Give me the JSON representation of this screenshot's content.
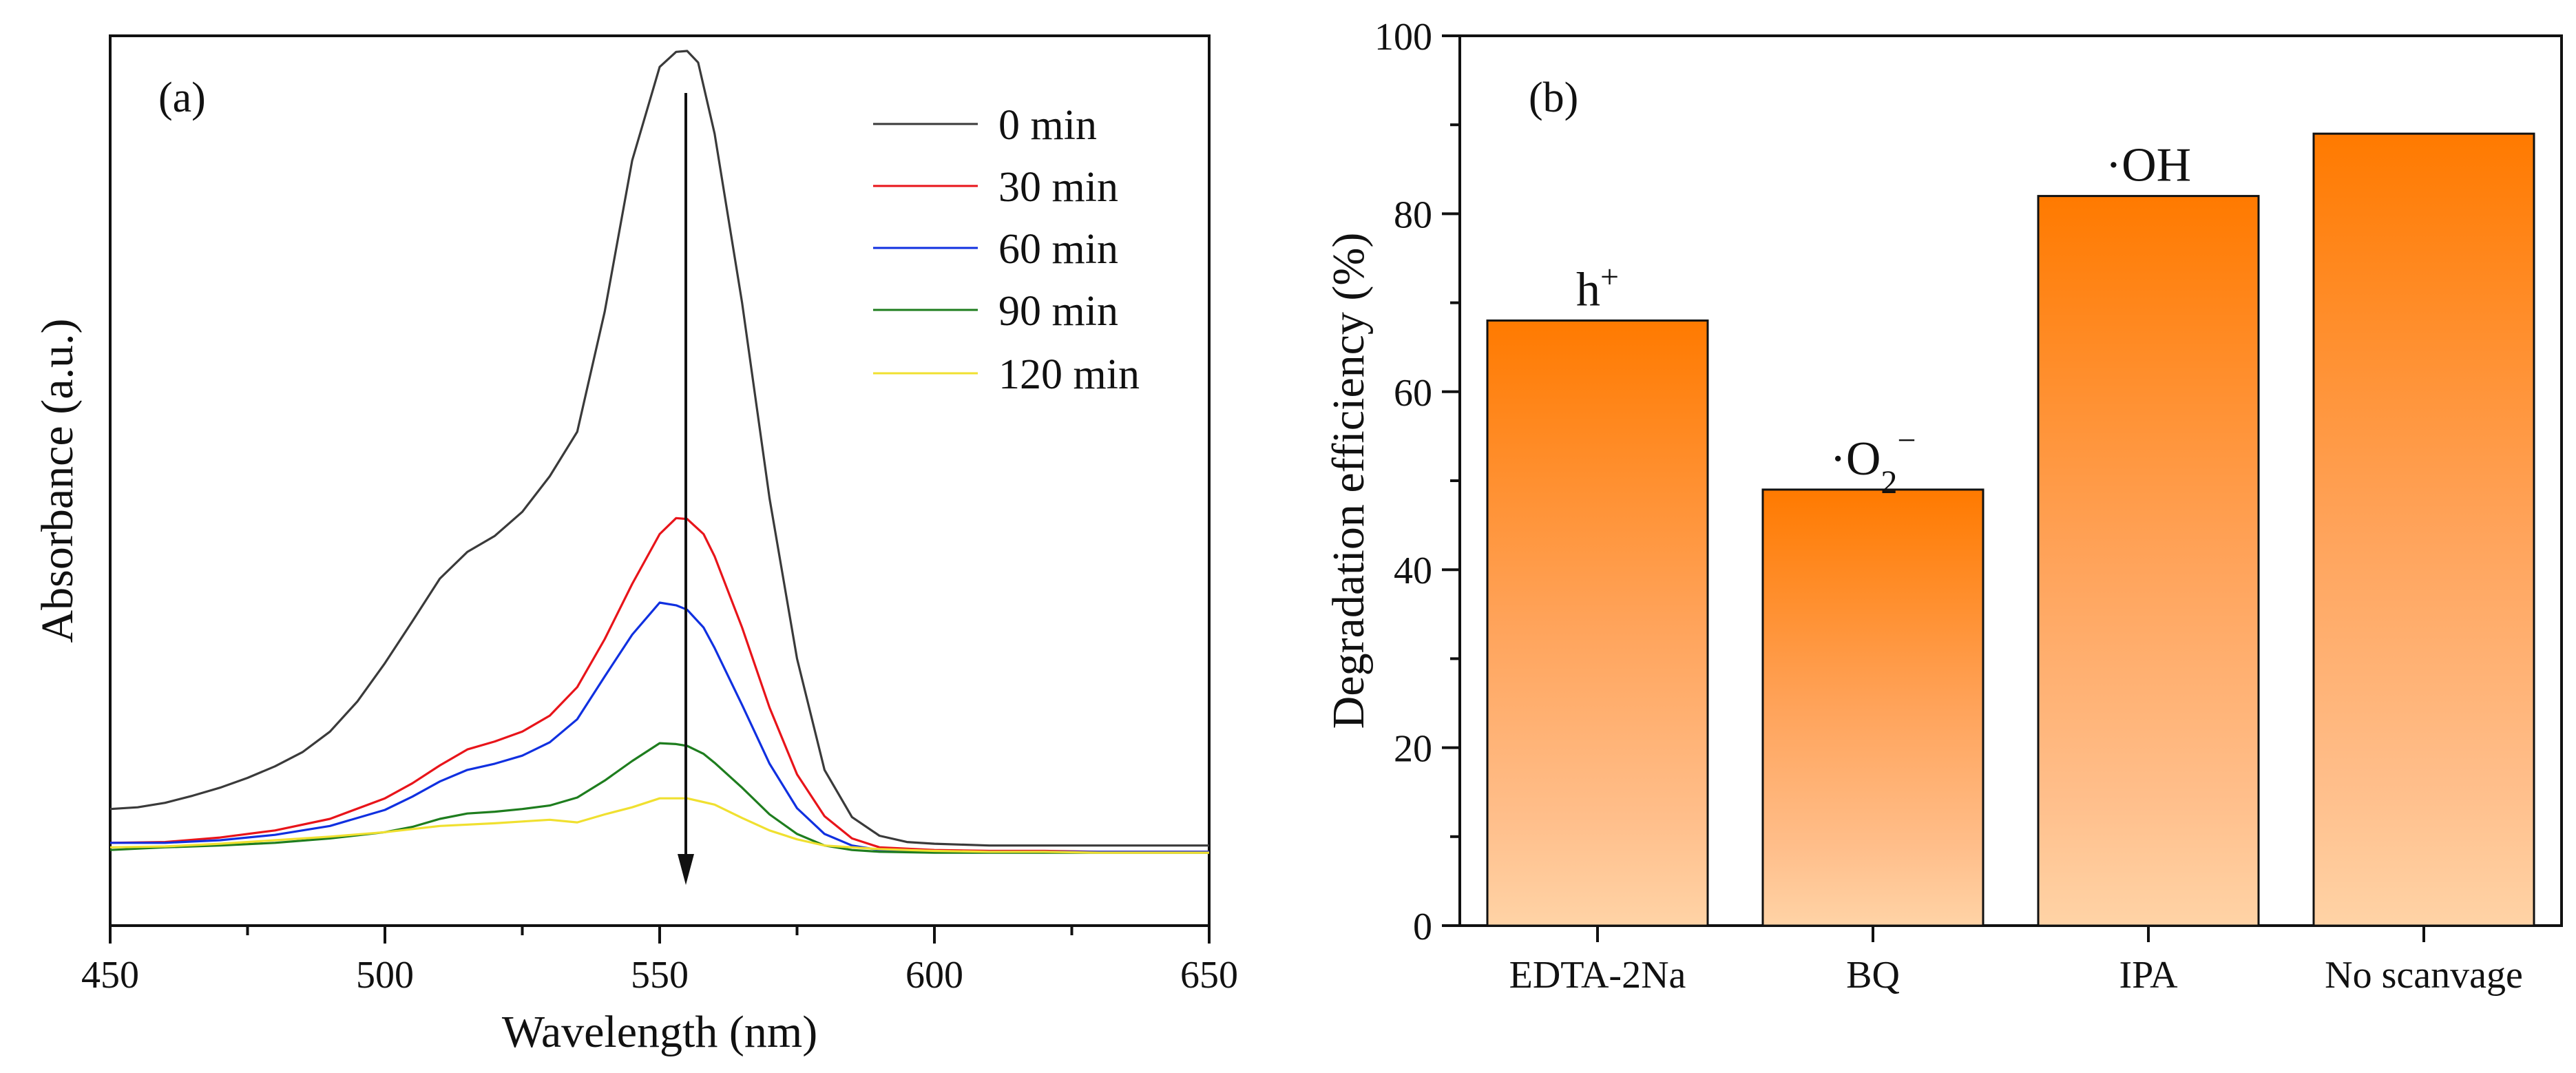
{
  "chart_data": [
    {
      "type": "line",
      "panel_label": "(a)",
      "xlabel": "Wavelength (nm)",
      "ylabel": "Absorbance (a.u.)",
      "xlim": [
        450,
        650
      ],
      "ylim": [
        0,
        1.0
      ],
      "x_ticks": [
        "450",
        "500",
        "550",
        "600",
        "650"
      ],
      "y_tick_labels_shown": false,
      "legend_position": "top-right",
      "annotations": [
        "downward arrow at the peak (~555 nm) indicating decreasing absorbance with time"
      ],
      "series": [
        {
          "name": "0 min",
          "color": "#3a3a3a",
          "x": [
            450,
            455,
            460,
            465,
            470,
            475,
            480,
            485,
            490,
            495,
            500,
            505,
            510,
            515,
            520,
            525,
            530,
            535,
            540,
            545,
            550,
            553,
            555,
            557,
            560,
            565,
            570,
            575,
            580,
            585,
            590,
            595,
            600,
            610,
            620,
            630,
            640,
            650
          ],
          "y": [
            0.131,
            0.133,
            0.138,
            0.146,
            0.155,
            0.166,
            0.179,
            0.195,
            0.218,
            0.252,
            0.295,
            0.342,
            0.39,
            0.42,
            0.438,
            0.465,
            0.505,
            0.555,
            0.69,
            0.86,
            0.965,
            0.982,
            0.983,
            0.97,
            0.89,
            0.7,
            0.48,
            0.3,
            0.175,
            0.122,
            0.101,
            0.094,
            0.092,
            0.09,
            0.09,
            0.09,
            0.09,
            0.09
          ]
        },
        {
          "name": "30 min",
          "color": "#e8141a",
          "x": [
            450,
            460,
            470,
            480,
            490,
            500,
            505,
            510,
            515,
            520,
            525,
            530,
            535,
            540,
            545,
            550,
            553,
            555,
            558,
            560,
            565,
            570,
            575,
            580,
            585,
            590,
            600,
            610,
            620,
            630,
            640,
            650
          ],
          "y": [
            0.093,
            0.094,
            0.099,
            0.107,
            0.12,
            0.143,
            0.16,
            0.18,
            0.198,
            0.207,
            0.218,
            0.236,
            0.268,
            0.322,
            0.384,
            0.44,
            0.458,
            0.457,
            0.44,
            0.415,
            0.335,
            0.245,
            0.17,
            0.123,
            0.098,
            0.088,
            0.085,
            0.084,
            0.084,
            0.083,
            0.083,
            0.083
          ]
        },
        {
          "name": "60 min",
          "color": "#1030e0",
          "x": [
            450,
            460,
            470,
            480,
            490,
            500,
            505,
            510,
            515,
            520,
            525,
            530,
            535,
            540,
            545,
            550,
            553,
            555,
            558,
            560,
            565,
            570,
            575,
            580,
            585,
            590,
            600,
            610,
            620,
            630,
            640,
            650
          ],
          "y": [
            0.093,
            0.093,
            0.096,
            0.102,
            0.112,
            0.13,
            0.145,
            0.162,
            0.175,
            0.182,
            0.191,
            0.206,
            0.232,
            0.28,
            0.327,
            0.363,
            0.36,
            0.355,
            0.335,
            0.312,
            0.248,
            0.182,
            0.132,
            0.103,
            0.09,
            0.085,
            0.083,
            0.083,
            0.083,
            0.083,
            0.083,
            0.083
          ]
        },
        {
          "name": "90 min",
          "color": "#1e7d1e",
          "x": [
            450,
            460,
            470,
            480,
            490,
            500,
            505,
            510,
            515,
            520,
            525,
            530,
            535,
            540,
            545,
            550,
            553,
            555,
            558,
            560,
            565,
            570,
            575,
            580,
            585,
            590,
            600,
            610,
            620,
            630,
            640,
            650
          ],
          "y": [
            0.085,
            0.088,
            0.09,
            0.093,
            0.098,
            0.105,
            0.111,
            0.12,
            0.126,
            0.128,
            0.131,
            0.135,
            0.144,
            0.163,
            0.185,
            0.205,
            0.204,
            0.202,
            0.193,
            0.183,
            0.155,
            0.125,
            0.103,
            0.09,
            0.085,
            0.083,
            0.082,
            0.082,
            0.082,
            0.082,
            0.082,
            0.082
          ]
        },
        {
          "name": "120 min",
          "color": "#f0e030",
          "x": [
            450,
            460,
            470,
            480,
            490,
            500,
            510,
            520,
            525,
            530,
            535,
            540,
            545,
            550,
            555,
            560,
            565,
            570,
            575,
            580,
            590,
            600,
            610,
            620,
            630,
            640,
            650
          ],
          "y": [
            0.088,
            0.089,
            0.092,
            0.096,
            0.1,
            0.105,
            0.112,
            0.115,
            0.117,
            0.119,
            0.116,
            0.125,
            0.133,
            0.143,
            0.143,
            0.136,
            0.121,
            0.107,
            0.097,
            0.09,
            0.086,
            0.084,
            0.083,
            0.083,
            0.082,
            0.082,
            0.082
          ]
        }
      ]
    },
    {
      "type": "bar",
      "panel_label": "(b)",
      "xlabel": "",
      "ylabel": "Degradation efficiency (%)",
      "ylim": [
        0,
        100
      ],
      "y_ticks": [
        "0",
        "20",
        "40",
        "60",
        "80",
        "100"
      ],
      "categories": [
        "EDTA-2Na",
        "BQ",
        "IPA",
        "No scanvage"
      ],
      "values": [
        68,
        49,
        82,
        89
      ],
      "bar_labels": [
        {
          "base": "h",
          "sup": "+",
          "sub": ""
        },
        {
          "base": "·O",
          "sup": "−",
          "sub": "2"
        },
        {
          "base": "·OH",
          "sup": "",
          "sub": ""
        },
        {
          "base": "",
          "sup": "",
          "sub": ""
        }
      ],
      "colors": {
        "bar_top": "#ff7a00",
        "bar_mid": "#ffb077",
        "bar_bottom": "#ffd0a0",
        "bar_edge": "#111111"
      }
    }
  ]
}
